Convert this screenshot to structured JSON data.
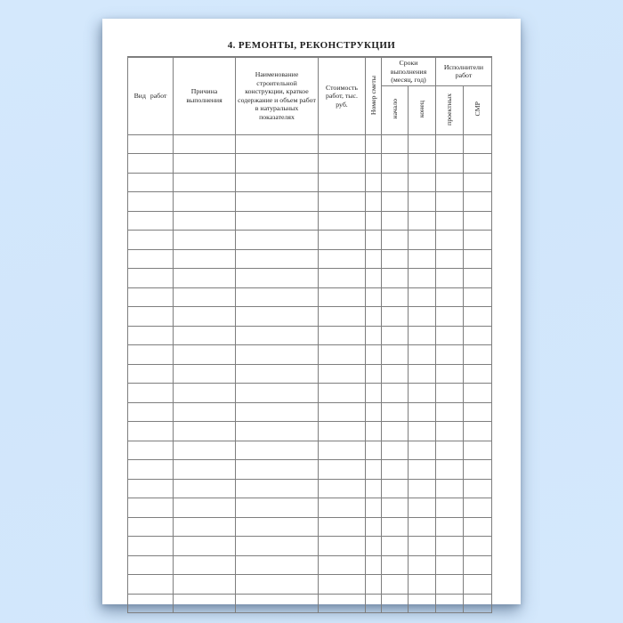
{
  "page": {
    "title": "4. РЕМОНТЫ, РЕКОНСТРУКЦИИ"
  },
  "table": {
    "columns": [
      {
        "label": "Вид работ",
        "orientation": "horizontal"
      },
      {
        "label": "Причина выполнения",
        "orientation": "horizontal"
      },
      {
        "label": "Наименование строительной конструкции, краткое содержание и объем работ в натуральных показателях",
        "orientation": "horizontal"
      },
      {
        "label": "Стоимость работ, тыс. руб.",
        "orientation": "horizontal"
      },
      {
        "label": "Номер сметы",
        "orientation": "vertical"
      }
    ],
    "groups": [
      {
        "label": "Сроки выполнения (месяц, год)",
        "subcolumns": [
          "начало",
          "конец"
        ]
      },
      {
        "label": "Исполнители работ",
        "subcolumns": [
          "проектных",
          "СМР"
        ]
      }
    ],
    "body": {
      "rows": 25,
      "columns": 9
    }
  },
  "colors": {
    "background": "#d4e8fc",
    "sheet": "#ffffff",
    "grid-line": "#7e7e7e",
    "text": "#1f1f1f"
  }
}
